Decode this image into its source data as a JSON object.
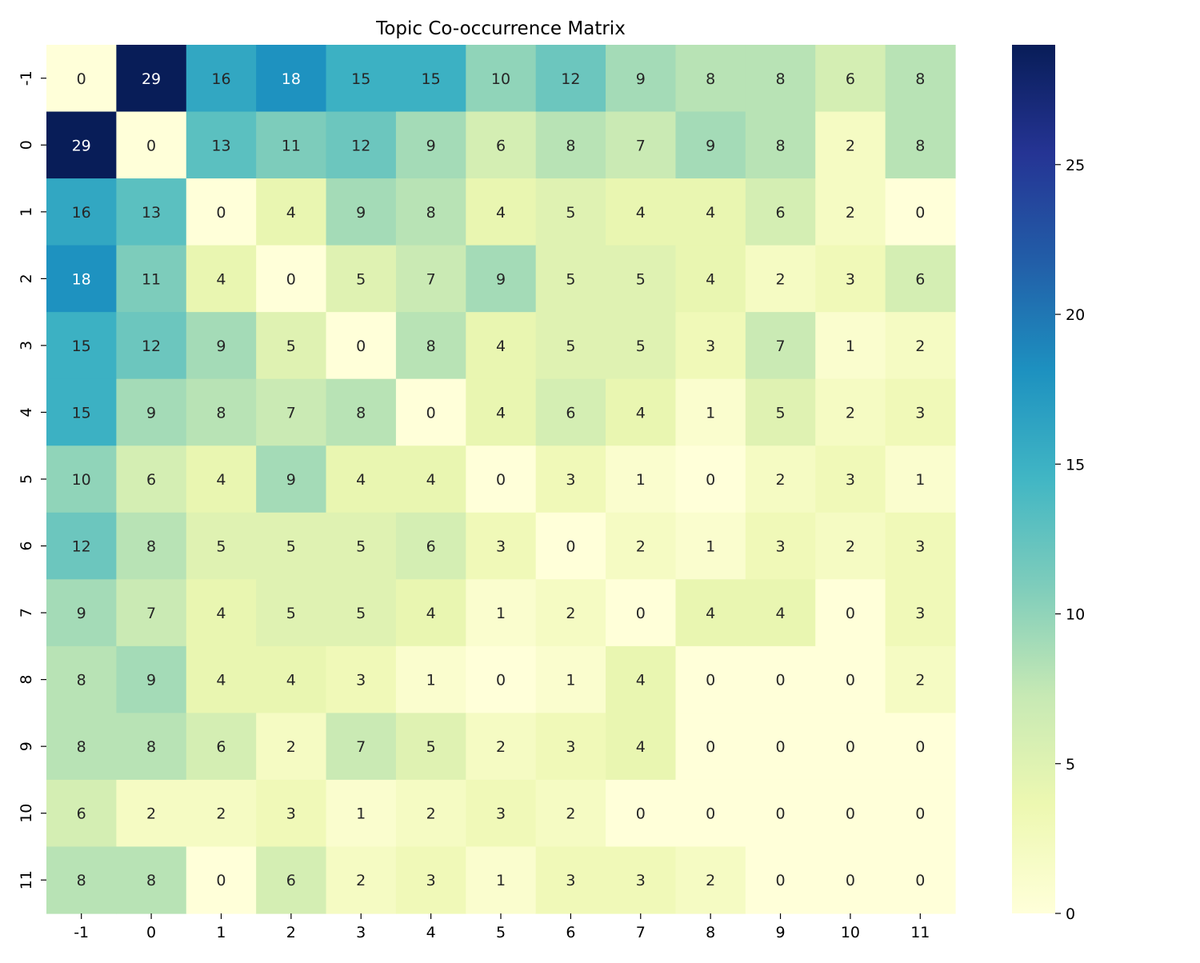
{
  "chart_data": {
    "type": "heatmap",
    "title": "Topic Co-occurrence Matrix",
    "xlabel": "",
    "ylabel": "",
    "x_labels": [
      "-1",
      "0",
      "1",
      "2",
      "3",
      "4",
      "5",
      "6",
      "7",
      "8",
      "9",
      "10",
      "11"
    ],
    "y_labels": [
      "-1",
      "0",
      "1",
      "2",
      "3",
      "4",
      "5",
      "6",
      "7",
      "8",
      "9",
      "10",
      "11"
    ],
    "values": [
      [
        0,
        29,
        16,
        18,
        15,
        15,
        10,
        12,
        9,
        8,
        8,
        6,
        8
      ],
      [
        29,
        0,
        13,
        11,
        12,
        9,
        6,
        8,
        7,
        9,
        8,
        2,
        8
      ],
      [
        16,
        13,
        0,
        4,
        9,
        8,
        4,
        5,
        4,
        4,
        6,
        2,
        0
      ],
      [
        18,
        11,
        4,
        0,
        5,
        7,
        9,
        5,
        5,
        4,
        2,
        3,
        6
      ],
      [
        15,
        12,
        9,
        5,
        0,
        8,
        4,
        5,
        5,
        3,
        7,
        1,
        2
      ],
      [
        15,
        9,
        8,
        7,
        8,
        0,
        4,
        6,
        4,
        1,
        5,
        2,
        3
      ],
      [
        10,
        6,
        4,
        9,
        4,
        4,
        0,
        3,
        1,
        0,
        2,
        3,
        1
      ],
      [
        12,
        8,
        5,
        5,
        5,
        6,
        3,
        0,
        2,
        1,
        3,
        2,
        3
      ],
      [
        9,
        7,
        4,
        5,
        5,
        4,
        1,
        2,
        0,
        4,
        4,
        0,
        3
      ],
      [
        8,
        9,
        4,
        4,
        3,
        1,
        0,
        1,
        4,
        0,
        0,
        0,
        2
      ],
      [
        8,
        8,
        6,
        2,
        7,
        5,
        2,
        3,
        4,
        0,
        0,
        0,
        0
      ],
      [
        6,
        2,
        2,
        3,
        1,
        2,
        3,
        2,
        0,
        0,
        0,
        0,
        0
      ],
      [
        8,
        8,
        0,
        6,
        2,
        3,
        1,
        3,
        3,
        2,
        0,
        0,
        0
      ]
    ],
    "vmin": 0,
    "vmax": 29,
    "colormap": "YlGnBu",
    "annotate": true,
    "colorbar": {
      "ticks": [
        0,
        5,
        10,
        15,
        20,
        25
      ],
      "tick_labels": [
        "0",
        "5",
        "10",
        "15",
        "20",
        "25"
      ]
    },
    "grid": false
  },
  "colors": {
    "colormap_stops": [
      "#ffffd9",
      "#edf8b1",
      "#c7e9b4",
      "#7fcdbb",
      "#41b6c4",
      "#1d91c0",
      "#225ea8",
      "#253494",
      "#081d58"
    ],
    "text_dark": "#262626",
    "text_light": "#ffffff",
    "axis": "#000000"
  }
}
